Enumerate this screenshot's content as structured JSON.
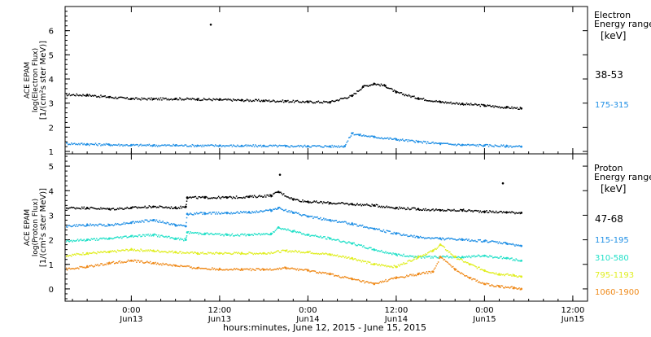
{
  "figure": {
    "x_axis_title": "hours:minutes, June 12, 2015 - June 15, 2015",
    "x_ticks": [
      {
        "hours": 0,
        "time": "0:00",
        "day": "Jun13"
      },
      {
        "hours": 12,
        "time": "12:00",
        "day": "Jun13"
      },
      {
        "hours": 24,
        "time": "0:00",
        "day": "Jun14"
      },
      {
        "hours": 36,
        "time": "12:00",
        "day": "Jun14"
      },
      {
        "hours": 48,
        "time": "0:00",
        "day": "Jun15"
      },
      {
        "hours": 60,
        "time": "12:00",
        "day": "Jun15"
      }
    ]
  },
  "chart_data": [
    {
      "type": "scatter",
      "panel": "electron",
      "ylabel_lines": [
        "ACE EPAM",
        "log(Electron Flux)",
        "[1/(cm²s ster MeV)]"
      ],
      "legend_title_lines": [
        "Electron",
        "Energy range",
        "[keV]"
      ],
      "xlim": [
        -9,
        62
      ],
      "ylim": [
        0.9,
        7
      ],
      "y_ticks": [
        1,
        2,
        3,
        4,
        5,
        6
      ],
      "series": [
        {
          "name": "38-53",
          "color": "#000000",
          "x": [
            -9,
            -6,
            -3,
            0,
            3,
            6,
            9,
            12,
            15,
            18,
            21,
            24,
            27,
            30,
            31.5,
            33,
            34.5,
            36,
            39,
            42,
            45,
            48,
            51,
            53
          ],
          "y": [
            3.35,
            3.33,
            3.25,
            3.18,
            3.17,
            3.18,
            3.16,
            3.14,
            3.12,
            3.1,
            3.08,
            3.05,
            3.04,
            3.3,
            3.68,
            3.8,
            3.72,
            3.45,
            3.2,
            3.05,
            2.97,
            2.9,
            2.82,
            2.78
          ]
        },
        {
          "name": "175-315",
          "color": "#1f8fe5",
          "x": [
            -9,
            -6,
            -3,
            0,
            3,
            6,
            9,
            12,
            15,
            18,
            21,
            24,
            27,
            29,
            30,
            31,
            33,
            36,
            39,
            42,
            45,
            48,
            51,
            53
          ],
          "y": [
            1.33,
            1.3,
            1.28,
            1.26,
            1.25,
            1.25,
            1.24,
            1.24,
            1.23,
            1.23,
            1.22,
            1.22,
            1.21,
            1.22,
            1.75,
            1.68,
            1.6,
            1.5,
            1.4,
            1.32,
            1.27,
            1.25,
            1.22,
            1.2
          ]
        }
      ],
      "outliers": [
        {
          "x": 10.8,
          "y": 6.25
        }
      ]
    },
    {
      "type": "scatter",
      "panel": "proton",
      "ylabel_lines": [
        "ACE EPAM",
        "log(Proton Flux)",
        "[1/(cm²s ster MeV)]"
      ],
      "legend_title_lines": [
        "Proton",
        "Energy range",
        "[keV]"
      ],
      "xlim": [
        -9,
        62
      ],
      "ylim": [
        -0.5,
        5.5
      ],
      "y_ticks": [
        0,
        1,
        2,
        3,
        4,
        5
      ],
      "series": [
        {
          "name": "47-68",
          "color": "#000000",
          "x": [
            -9,
            -6,
            -3,
            0,
            3,
            6,
            7.4,
            7.6,
            10,
            13,
            16,
            19,
            20,
            22,
            24,
            27,
            30,
            33,
            36,
            39,
            42,
            45,
            48,
            51,
            53
          ],
          "y": [
            3.3,
            3.3,
            3.25,
            3.3,
            3.35,
            3.3,
            3.35,
            3.72,
            3.72,
            3.72,
            3.75,
            3.8,
            3.95,
            3.65,
            3.55,
            3.5,
            3.45,
            3.4,
            3.3,
            3.25,
            3.2,
            3.2,
            3.15,
            3.12,
            3.1
          ]
        },
        {
          "name": "115-195",
          "color": "#1f8fe5",
          "x": [
            -9,
            -6,
            -3,
            0,
            3,
            6,
            7.4,
            7.6,
            10,
            13,
            16,
            19,
            20,
            22,
            24,
            27,
            30,
            33,
            36,
            39,
            42,
            45,
            48,
            51,
            53
          ],
          "y": [
            2.55,
            2.6,
            2.6,
            2.7,
            2.8,
            2.6,
            2.55,
            3.05,
            3.08,
            3.1,
            3.12,
            3.2,
            3.3,
            3.1,
            2.95,
            2.8,
            2.65,
            2.45,
            2.25,
            2.1,
            2.05,
            2.0,
            1.95,
            1.85,
            1.75
          ]
        },
        {
          "name": "310-580",
          "color": "#22e0c8",
          "x": [
            -9,
            -6,
            -3,
            0,
            3,
            6,
            7.4,
            7.6,
            10,
            13,
            16,
            19,
            20,
            22,
            24,
            27,
            30,
            33,
            36,
            39,
            42,
            45,
            48,
            51,
            53
          ],
          "y": [
            1.95,
            2.0,
            2.05,
            2.15,
            2.2,
            2.05,
            2.0,
            2.3,
            2.25,
            2.2,
            2.2,
            2.25,
            2.5,
            2.35,
            2.2,
            2.05,
            1.85,
            1.6,
            1.4,
            1.3,
            1.3,
            1.3,
            1.35,
            1.25,
            1.15
          ]
        },
        {
          "name": "795-1193",
          "color": "#e0ee20",
          "x": [
            -9,
            -6,
            -3,
            0,
            3,
            6,
            9,
            12,
            15,
            18,
            21,
            24,
            27,
            30,
            33,
            36,
            39,
            41,
            42,
            44,
            46,
            48,
            50,
            52,
            53
          ],
          "y": [
            1.35,
            1.45,
            1.5,
            1.6,
            1.55,
            1.5,
            1.45,
            1.45,
            1.45,
            1.45,
            1.55,
            1.5,
            1.4,
            1.25,
            1.0,
            0.9,
            1.3,
            1.55,
            1.8,
            1.3,
            1.0,
            0.75,
            0.6,
            0.55,
            0.5
          ]
        },
        {
          "name": "1060-1900",
          "color": "#ef8a1a",
          "x": [
            -9,
            -6,
            -3,
            0,
            3,
            6,
            9,
            12,
            15,
            18,
            21,
            24,
            27,
            30,
            33,
            36,
            39,
            41,
            42,
            44,
            46,
            48,
            50,
            52,
            53
          ],
          "y": [
            0.8,
            0.9,
            1.05,
            1.15,
            1.05,
            0.95,
            0.85,
            0.8,
            0.8,
            0.78,
            0.85,
            0.75,
            0.6,
            0.4,
            0.2,
            0.45,
            0.6,
            0.7,
            1.3,
            0.8,
            0.45,
            0.2,
            0.1,
            0.05,
            0.0
          ]
        }
      ],
      "outliers": [
        {
          "x": 20.2,
          "y": 4.65
        },
        {
          "x": 50.5,
          "y": 4.3
        }
      ]
    }
  ]
}
